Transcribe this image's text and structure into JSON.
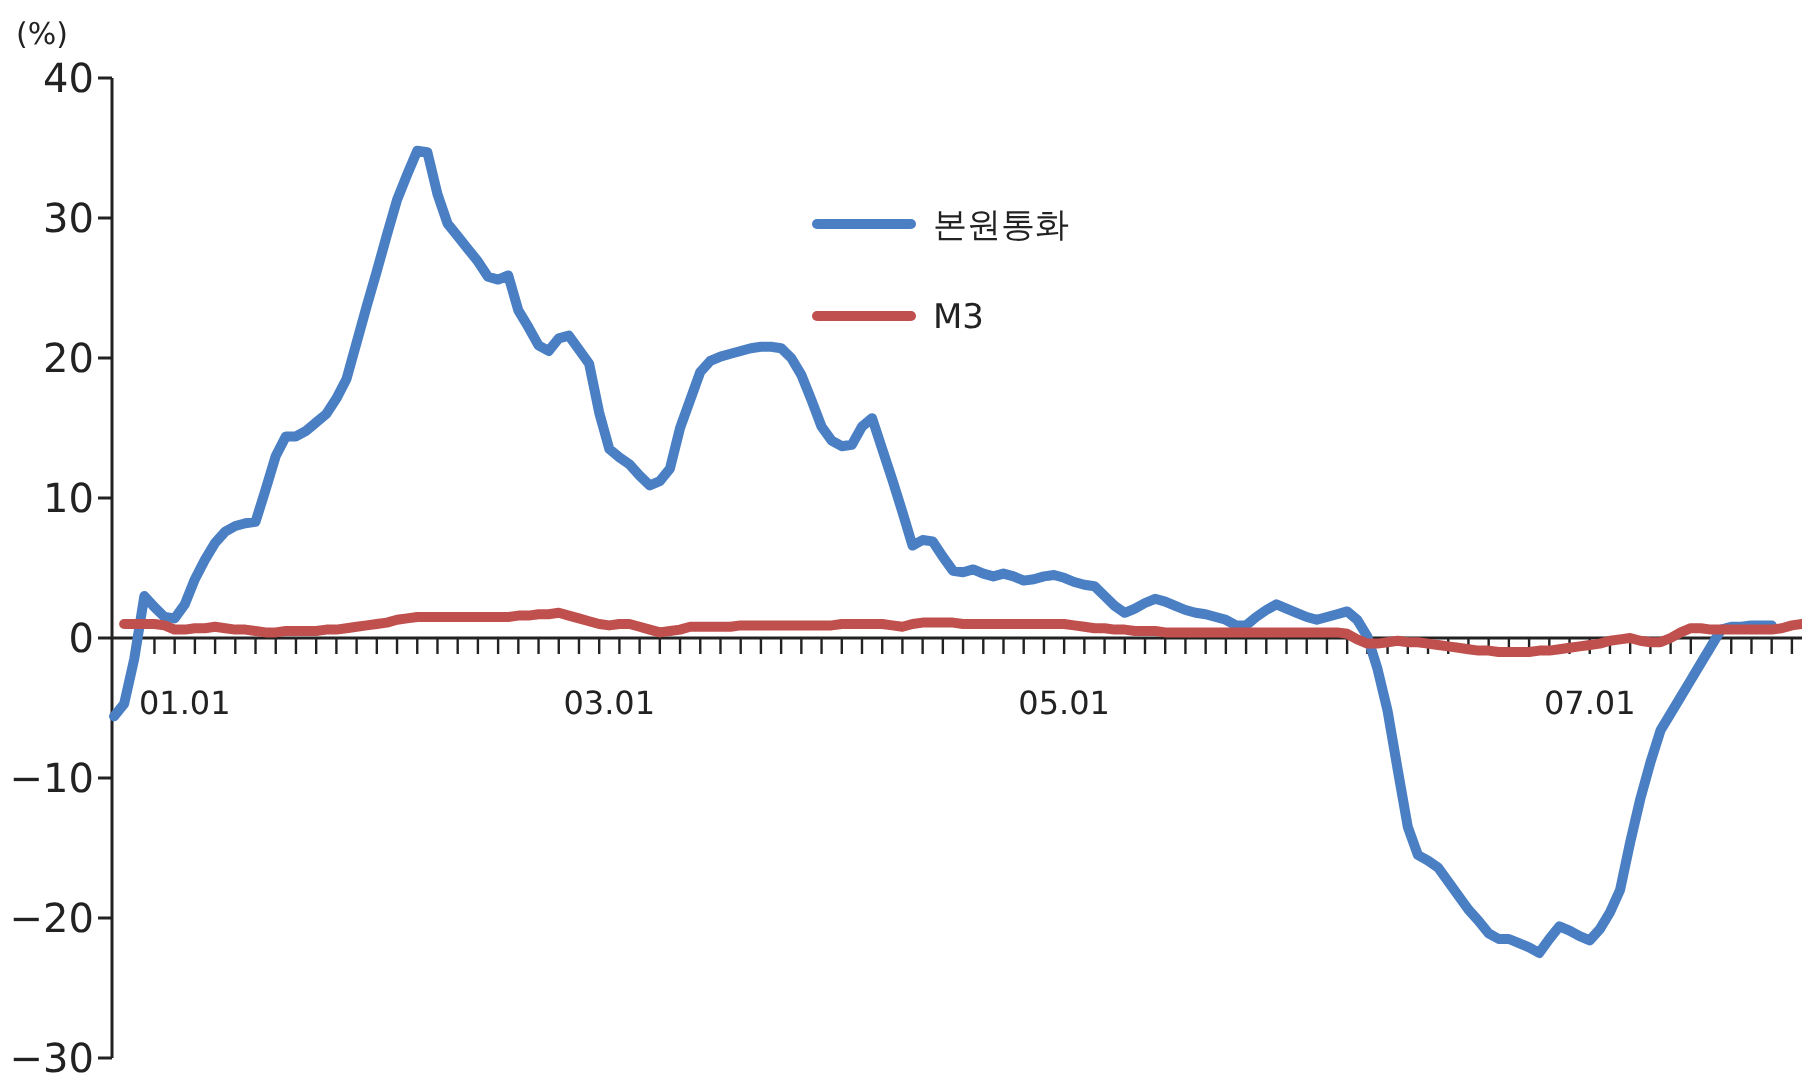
{
  "chart_data": {
    "type": "line",
    "ylabel": "(%)",
    "ylim": [
      -30,
      40
    ],
    "yticks": [
      {
        "value": -30,
        "label": "−30"
      },
      {
        "value": -20,
        "label": "−20"
      },
      {
        "value": -10,
        "label": "−10"
      },
      0,
      10,
      20,
      30,
      40
    ],
    "categories": [
      null,
      null,
      null,
      null,
      null,
      null,
      null,
      "01.01",
      null,
      null,
      null,
      null,
      null,
      null,
      null,
      null,
      null,
      null,
      null,
      null,
      null,
      null,
      null,
      null,
      null,
      null,
      null,
      null,
      null,
      null,
      null,
      null,
      null,
      null,
      null,
      null,
      null,
      null,
      null,
      null,
      null,
      null,
      null,
      null,
      null,
      null,
      null,
      null,
      null,
      "03.01",
      null,
      null,
      null,
      null,
      null,
      null,
      null,
      null,
      null,
      null,
      null,
      null,
      null,
      null,
      null,
      null,
      null,
      null,
      null,
      null,
      null,
      null,
      null,
      null,
      null,
      null,
      null,
      null,
      null,
      null,
      null,
      null,
      null,
      null,
      null,
      null,
      null,
      null,
      null,
      null,
      null,
      null,
      null,
      null,
      "05.01",
      null,
      null,
      null,
      null,
      null,
      null,
      null,
      null,
      null,
      null,
      null,
      null,
      null,
      null,
      null,
      null,
      null,
      null,
      null,
      null,
      null,
      null,
      null,
      null,
      null,
      null,
      null,
      null,
      null,
      null,
      null,
      null,
      null,
      null,
      null,
      null,
      null,
      null,
      null,
      null,
      null,
      null,
      null,
      null,
      null,
      null,
      null,
      null,
      null,
      null,
      null,
      "07.01",
      null,
      null,
      null,
      null,
      null,
      null,
      null,
      null,
      null,
      null,
      null,
      null,
      null,
      null,
      null,
      null,
      null,
      null,
      null,
      null,
      null
    ],
    "legend": "top",
    "grid": false,
    "marker": "none",
    "line_style": "solid",
    "series": [
      {
        "name": "본원통화",
        "color": "#4a7fc4",
        "values": [
          -5.6,
          -4.7,
          -1.5,
          3.0,
          2.2,
          1.5,
          1.4,
          2.4,
          4.2,
          5.6,
          6.8,
          7.6,
          8.0,
          8.2,
          8.3,
          10.6,
          13.0,
          14.4,
          14.4,
          14.8,
          15.4,
          16.0,
          17.1,
          18.5,
          21.1,
          23.7,
          26.2,
          28.8,
          31.3,
          33.1,
          34.8,
          34.7,
          31.7,
          29.6,
          28.7,
          27.8,
          26.9,
          25.8,
          25.6,
          25.9,
          23.4,
          22.2,
          20.9,
          20.5,
          21.4,
          21.6,
          20.6,
          19.6,
          16.1,
          13.5,
          12.9,
          12.4,
          11.6,
          10.9,
          11.2,
          12.1,
          15.0,
          17.0,
          19.0,
          19.8,
          20.1,
          20.3,
          20.5,
          20.7,
          20.8,
          20.8,
          20.7,
          20.0,
          18.8,
          17.0,
          15.1,
          14.1,
          13.7,
          13.8,
          15.1,
          15.7,
          13.5,
          11.3,
          9.0,
          6.6,
          7.0,
          6.9,
          5.8,
          4.8,
          4.7,
          4.9,
          4.6,
          4.4,
          4.6,
          4.4,
          4.1,
          4.2,
          4.4,
          4.5,
          4.3,
          4.0,
          3.8,
          3.7,
          3.0,
          2.3,
          1.8,
          2.1,
          2.5,
          2.8,
          2.6,
          2.3,
          2.0,
          1.8,
          1.7,
          1.5,
          1.3,
          0.9,
          0.9,
          1.5,
          2.0,
          2.4,
          2.1,
          1.8,
          1.5,
          1.3,
          1.5,
          1.7,
          1.9,
          1.3,
          0.1,
          -2.2,
          -5.2,
          -9.4,
          -13.5,
          -15.5,
          -15.9,
          -16.4,
          -17.4,
          -18.4,
          -19.4,
          -20.2,
          -21.1,
          -21.5,
          -21.5,
          -21.8,
          -22.1,
          -22.5,
          -21.5,
          -20.6,
          -20.9,
          -21.3,
          -21.6,
          -20.8,
          -19.6,
          -18.0,
          -14.6,
          -11.5,
          -8.9,
          -6.6,
          -5.4,
          -4.2,
          -3.0,
          -1.8,
          -0.6,
          0.6,
          0.8,
          0.8,
          0.9,
          0.9,
          0.9,
          null,
          null,
          null
        ]
      },
      {
        "name": "M3",
        "color": "#c0504d",
        "values": [
          null,
          1.0,
          1.0,
          1.0,
          1.0,
          0.9,
          0.6,
          0.6,
          0.7,
          0.7,
          0.8,
          0.7,
          0.6,
          0.6,
          0.5,
          0.4,
          0.4,
          0.5,
          0.5,
          0.5,
          0.5,
          0.6,
          0.6,
          0.7,
          0.8,
          0.9,
          1.0,
          1.1,
          1.3,
          1.4,
          1.5,
          1.5,
          1.5,
          1.5,
          1.5,
          1.5,
          1.5,
          1.5,
          1.5,
          1.5,
          1.6,
          1.6,
          1.7,
          1.7,
          1.8,
          1.6,
          1.4,
          1.2,
          1.0,
          0.9,
          1.0,
          1.0,
          0.8,
          0.6,
          0.4,
          0.5,
          0.6,
          0.8,
          0.8,
          0.8,
          0.8,
          0.8,
          0.9,
          0.9,
          0.9,
          0.9,
          0.9,
          0.9,
          0.9,
          0.9,
          0.9,
          0.9,
          1.0,
          1.0,
          1.0,
          1.0,
          1.0,
          0.9,
          0.8,
          1.0,
          1.1,
          1.1,
          1.1,
          1.1,
          1.0,
          1.0,
          1.0,
          1.0,
          1.0,
          1.0,
          1.0,
          1.0,
          1.0,
          1.0,
          1.0,
          0.9,
          0.8,
          0.7,
          0.7,
          0.6,
          0.6,
          0.5,
          0.5,
          0.5,
          0.4,
          0.4,
          0.4,
          0.4,
          0.4,
          0.4,
          0.4,
          0.4,
          0.4,
          0.4,
          0.4,
          0.4,
          0.4,
          0.4,
          0.4,
          0.4,
          0.4,
          0.4,
          0.3,
          -0.1,
          -0.4,
          -0.4,
          -0.3,
          -0.2,
          -0.3,
          -0.3,
          -0.4,
          -0.5,
          -0.6,
          -0.7,
          -0.8,
          -0.9,
          -0.9,
          -1.0,
          -1.0,
          -1.0,
          -1.0,
          -0.9,
          -0.9,
          -0.8,
          -0.7,
          -0.6,
          -0.5,
          -0.4,
          -0.2,
          -0.1,
          0.0,
          -0.2,
          -0.3,
          -0.3,
          0.0,
          0.4,
          0.7,
          0.7,
          0.6,
          0.6,
          0.6,
          0.6,
          0.6,
          0.6,
          0.6,
          0.7,
          0.9,
          1.0
        ]
      }
    ]
  }
}
